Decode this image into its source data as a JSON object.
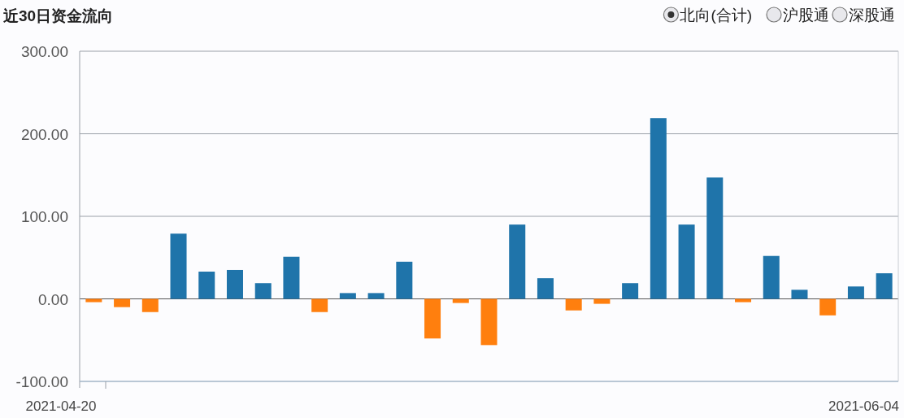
{
  "chart_data": {
    "type": "bar",
    "title": "近30日资金流向",
    "categories": [
      null,
      null,
      null,
      null,
      null,
      null,
      null,
      null,
      null,
      null,
      null,
      null,
      null,
      null,
      null,
      null,
      null,
      null,
      null,
      null,
      null,
      null,
      null,
      null,
      null,
      null,
      null,
      null,
      null
    ],
    "series": [
      {
        "name": "北向(合计)",
        "values": [
          -4,
          -10,
          -16,
          79,
          33,
          35,
          19,
          51,
          -16,
          7,
          7,
          45,
          -48,
          -5,
          -56,
          90,
          25,
          -14,
          -6,
          19,
          219,
          90,
          147,
          -4,
          52,
          11,
          -20,
          15,
          31
        ],
        "colors": [
          "#ff7f0e",
          "#ff7f0e",
          "#ff7f0e",
          "#1f74aa",
          "#1f74aa",
          "#1f74aa",
          "#1f74aa",
          "#1f74aa",
          "#ff7f0e",
          "#1f74aa",
          "#1f74aa",
          "#1f74aa",
          "#ff7f0e",
          "#ff7f0e",
          "#ff7f0e",
          "#1f74aa",
          "#1f74aa",
          "#ff7f0e",
          "#ff7f0e",
          "#1f74aa",
          "#1f74aa",
          "#1f74aa",
          "#1f74aa",
          "#ff7f0e",
          "#1f74aa",
          "#1f74aa",
          "#ff7f0e",
          "#1f74aa",
          "#1f74aa"
        ]
      }
    ],
    "annotations": [
      "沪股通",
      "深股通",
      "2021-04-20",
      "2021-06-04"
    ],
    "ylim": [
      -100,
      300
    ],
    "yticks": [
      {
        "value": -100,
        "label": "-100.00"
      },
      {
        "value": 0,
        "label": "0.00"
      },
      {
        "value": 100,
        "label": "100.00"
      },
      {
        "value": 200,
        "label": "200.00"
      },
      {
        "value": 300,
        "label": "300.00"
      }
    ],
    "grid": "y",
    "legend": "top right"
  }
}
